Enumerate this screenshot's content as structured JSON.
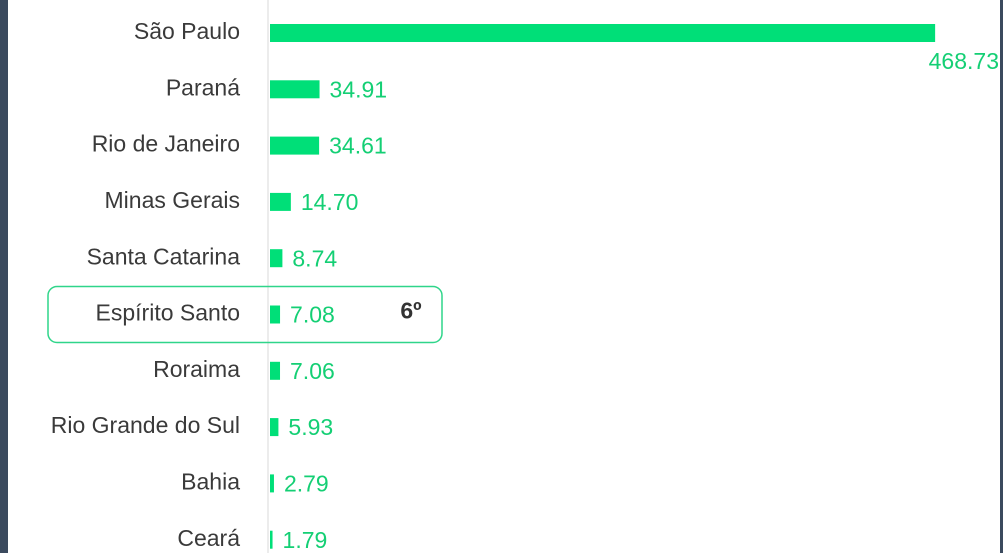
{
  "chart_data": {
    "type": "hbar",
    "categories": [
      "São Paulo",
      "Paraná",
      "Rio de Janeiro",
      "Minas Gerais",
      "Santa Catarina",
      "Espírito Santo",
      "Roraima",
      "Rio Grande do Sul",
      "Bahia",
      "Ceará"
    ],
    "values": [
      468.73,
      34.91,
      34.61,
      14.7,
      8.74,
      7.08,
      7.06,
      5.93,
      2.79,
      1.79
    ],
    "value_labels": [
      "468.73",
      "34.91",
      "34.61",
      "14.70",
      "8.74",
      "7.08",
      "7.06",
      "5.93",
      "2.79",
      "1.79"
    ],
    "color": "#00df78",
    "xlim": [
      0,
      500
    ],
    "highlight": {
      "category": "Espírito Santo",
      "label": "6º"
    }
  }
}
